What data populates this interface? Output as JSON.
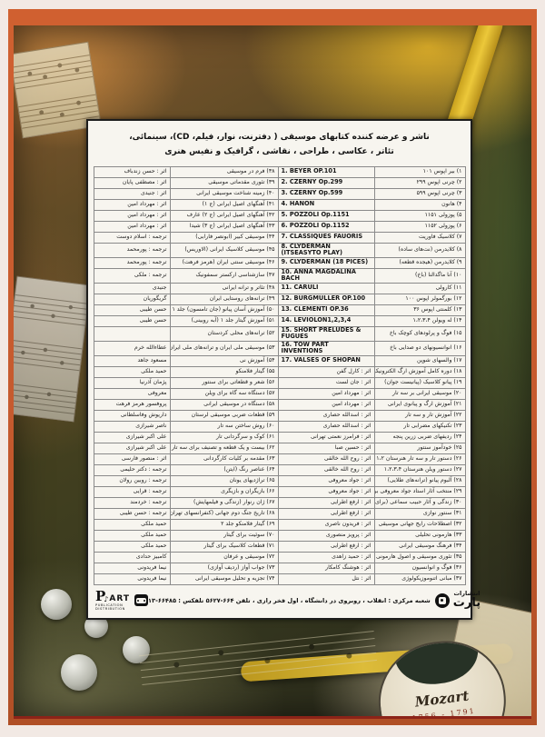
{
  "page": {
    "title_line1": "ناشر و عرضه کننده کتابهای موسیقی ( دفترنت، نوار، فیلم، CD)، سینمائی،",
    "title_line2": "تئاتر ، عکاسی ، طراحی ، نقاشی ، گرافیک و نفیس هنری"
  },
  "table": {
    "rows": [
      [
        "اثر : حسن زندباف",
        "۳۸) فرم در موسیقی",
        "1. BEYER OP.101",
        "۱) بیر اپوس ۱۰۱"
      ],
      [
        "اثر : مصطفی پایان",
        "۳۹) تئوری مقدماتی موسیقی",
        "2. CZERNY Op.299",
        "۲) چرنی اپوس ۲۹۹"
      ],
      [
        "اثر : جنیدی",
        "۴۰) زمینه شناخت موسیقی ایرانی",
        "3. CZERNY Op.599",
        "۳) چرنی اپوس ۵۹۹"
      ],
      [
        "اثر : مهرداد امین",
        "۴۱) آهنگهای اصیل ایرانی (ج ۱)",
        "4. HANON",
        "۴) هانون"
      ],
      [
        "اثر : مهرداد امین",
        "۴۲) آهنگهای اصیل ایرانی (ج ۲) عارف",
        "5. POZZOLI Op.1151",
        "۵) پوزولی ۱۱۵۱"
      ],
      [
        "اثر : مهرداد امین",
        "۴۳) آهنگهای اصیل ایرانی (ج ۳) شیدا",
        "6. POZZOLI Op.1152",
        "۶) پوزولی ۱۱۵۲"
      ],
      [
        "ترجمه : اسلام دوست",
        "۴۴) موسیقی کبیر (ابونصر فارابی)",
        "7. CLASSIQUES FAUORIS",
        "۷) کلاسیک فاوریت"
      ],
      [
        "ترجمه : پورمحمد",
        "۴۵) موسیقی کلاسیک ایرانی (الاوریس)",
        "8. CLYDERMAN (ITSEASYTO PLAY)",
        "۸) کلایدرمن (نت‌های ساده)"
      ],
      [
        "ترجمه : پورمحمد",
        "۴۶) موسیقی سنتی ایران (هرمز فرهت)",
        "9. CLYDERMAN (18 PICES)",
        "۹) کلایدرمن (هیجده قطعه)"
      ],
      [
        "ترجمه : ملکی",
        "۴۷) سازشناسی ارکستر سمفونیک",
        "10. ANNA MAGDALINA BACH",
        "۱۰) آنا ماگدالنا (باخ)"
      ],
      [
        "جنیدی",
        "۴۸) تئاتر و ترانه ایرانی",
        "11. CARULI",
        "۱۱) کارولی"
      ],
      [
        "گریگوریان",
        "۴۹) ترانه‌های روستایی ایران",
        "12. BURGMULLER OP.100",
        "۱۲) بورگمولر اپوس ۱۰۰"
      ],
      [
        "حسن طیبی",
        "۵۰) آموزش آسان پیانو (جان تامسون) جلد ۱",
        "13. CLEMENTI OP.36",
        "۱۳) کلمنتی اپوس ۳۶"
      ],
      [
        "حسن طیبی",
        "۵۱) آموزش گیتار جلد ۱ (آبه روبینی)",
        "14. LEVIOLON1,2,3,4",
        "۱۴) له ویولن ۱،۲،۳،۴"
      ],
      [
        "",
        "۵۲) ترانه‌های محلی کردستان",
        "15. SHORT PRELUDES & FUGUES",
        "۱۵) فوگ و پرلودهای کوچک باخ"
      ],
      [
        "عطاءالله خرم",
        "۵۳) موسیقی ملی ایران و ترانه‌های ملی ایران",
        "16. TOW PART INVENTIONS",
        "۱۶) انوانسیونهای دو صدایی باخ"
      ],
      [
        "مسعود جاهد",
        "۵۴) آموزش نی",
        "17. VALSES OF SHOPAN",
        "۱۷) والسهای شوپن"
      ],
      [
        "حمید ملکی",
        "۵۵) گیتار فلامنکو",
        "اثر : کارل گفن",
        "۱۸) دوره کامل آموزش ارگ الکترونیک"
      ],
      [
        "پژمان آذرنیا",
        "۵۶) شعر و قطعاتی برای سنتور",
        "اثر : جان لست",
        "۱۹) پیانو کلاسیک (پیانیست جوان)"
      ],
      [
        "معروفی",
        "۵۷) دستگاه سه گاه برای ویلن",
        "اثر : مهرداد امین",
        "۲۰) موسیقی ایرانی بر سه تار"
      ],
      [
        "پروفسور هرمز فرهت",
        "۵۸) دستگاه در موسیقی ایرانی",
        "اثر : مهرداد امین",
        "۲۱) آموزش ارگ و پیانوی ایرانی"
      ],
      [
        "داریوش وفاسلطانی",
        "۵۹) قطعات ضربی موسیقی لرستان",
        "اثر : اسدالله حصاری",
        "۲۲) آموزش تار و سه تار"
      ],
      [
        "ناصر شیرازی",
        "۶۰) روش ساختن سه تار",
        "اثر : اسدالله حصاری",
        "۲۳) تکنیکهای مضرابی تار"
      ],
      [
        "علی اکبر شیرازی",
        "۶۱) کوک و سرگردانی تار",
        "اثر : فرامرز نعمتی تهرانی",
        "۲۴) ردیفهای ضربی زرین پنجه"
      ],
      [
        "علی اکبر شیرازی",
        "۶۲) بیست و یک قطعه و تصنیف برای سه تار",
        "اثر : حسین صبا",
        "۲۵) خودآموز سنتور"
      ],
      [
        "اثر : منصور فارسی",
        "۶۳) مقدمه بر کلیات کارگردانی",
        "اثر : روح الله خالقی",
        "۲۶) دستور تار و سه تار هنرستان ۱،۲"
      ],
      [
        "ترجمه : دکتر حلیمی",
        "۶۴) عناصر رنگ (ایتن)",
        "اثر : روح الله خالقی",
        "۲۷) دستور ویلن هنرستان ۱،۲،۳،۴"
      ],
      [
        "ترجمه : روبین رولان",
        "۶۵) تراژدیهای یونان",
        "اثر : جواد معروفی",
        "۲۸) آلبوم پیانو (ترانه‌های طلایی)"
      ],
      [
        "ترجمه : قرایی",
        "۶۶) بازیگران و بازیگری",
        "اثر : جواد معروفی",
        "۲۹) منتخب آثار استاد جواد معروفی برای پیانو"
      ],
      [
        "ترجمه : خردمند",
        "۶۷) ژان رنوار (زندگی و فیلمهایش)",
        "اثر : ارفع اطرایی",
        "۳۰) زندگی و آثار حبیب سماعی (برای سنتور)"
      ],
      [
        "ترجمه : حسن طیبی",
        "۶۸) تاریخ جنگ دوم جهانی (کنفرانسهای تهران-یالتا)",
        "اثر : ارفع اطرایی",
        "۳۱) سنتور نوازی"
      ],
      [
        "حمید ملکی",
        "۶۹) گیتار فلامنکو جلد ۲",
        "اثر : فریدون ناصری",
        "۳۲) اصطلاحات رایج جهانی موسیقی"
      ],
      [
        "حمید ملکی",
        "۷۰) سوئیت برای گیتار",
        "اثر : پرویز منصوری",
        "۳۳) هارمونی تحلیلی"
      ],
      [
        "حمید ملکی",
        "۷۱) قطعات کلاسیک برای گیتار",
        "اثر : ارفع اطرایی",
        "۳۴) فرهنگ موسیقی ایرانی"
      ],
      [
        "کامبیز حدادی",
        "۷۲) موسیقی و عرفان",
        "اثر : حمید زاهدی",
        "۳۵) تئوری موسیقی و اصول هارمونی"
      ],
      [
        "نیما فریدونی",
        "۷۳) جواب آواز (ردیف آوازی)",
        "اثر : هوشنگ کامکار",
        "۳۶) فوگ و انوانسیون"
      ],
      [
        "نیما فریدونی",
        "۷۴) تجزیه و تحلیل موسیقی ایرانی",
        "اثر : نتل",
        "۳۷) مبانی اتنوموزیکولوژی"
      ]
    ]
  },
  "footer": {
    "publisher_fa_top": "انتشارات",
    "publisher_fa_name": "پارت",
    "address": "شعبه مرکزی : انقلاب ، روبروی در دانشگاه ، اول فخر رازی ، تلفن ۶۶۴-۵۶۲۷ تلفکس : ۶۶۴۸۵-۱۳",
    "logo_p": "P",
    "logo_note": "♪",
    "logo_art": "ART",
    "logo_line1": "PUBLICATION",
    "logo_line2": "DISTRIBUTION",
    "icons": {
      "left_icon": "cassette-icon",
      "right_icon": "cassette-circle-icon"
    }
  },
  "background": {
    "mozart_name": "Mozart",
    "mozart_years": "1756 - 1791"
  },
  "colors": {
    "frame_orange": "#c65a2e",
    "frame_red_line": "#8c2318",
    "page_bg": "#f2e9e4",
    "box_bg": "#f7f5ef",
    "photo_dark": "#2e2c1c",
    "instrument_yellow": "#e4b42a"
  }
}
